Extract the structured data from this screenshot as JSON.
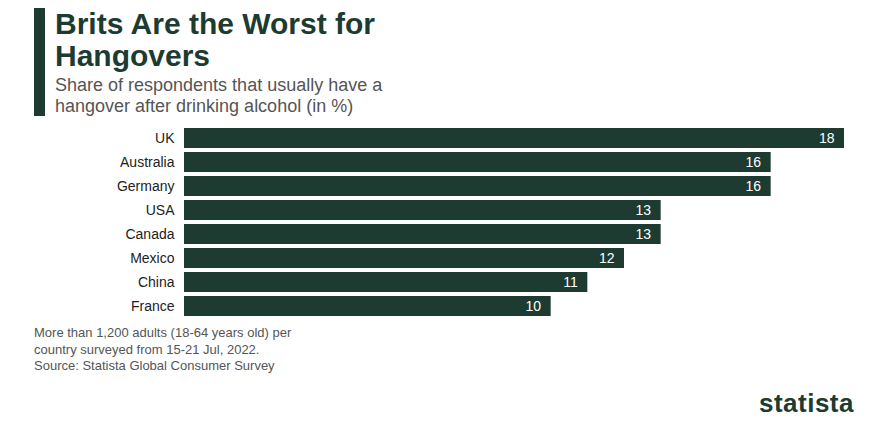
{
  "chart_data": {
    "type": "bar",
    "title": "Brits Are the Worst for Hangovers",
    "subtitle": "Share of respondents that usually have a hangover after drinking alcohol (in %)",
    "categories": [
      "UK",
      "Australia",
      "Germany",
      "USA",
      "Canada",
      "Mexico",
      "China",
      "France"
    ],
    "values": [
      18,
      16,
      16,
      13,
      13,
      12,
      11,
      10
    ],
    "color": "#1d3b31",
    "orientation": "horizontal",
    "data_labels": true,
    "tick_labels": "y",
    "xlim": [
      0,
      18
    ],
    "note": "More than 1,200 adults (18-64 years old) per country surveyed from 15-21 Jul, 2022.",
    "source": "Source: Statista Global Consumer Survey",
    "brand": "statista"
  }
}
